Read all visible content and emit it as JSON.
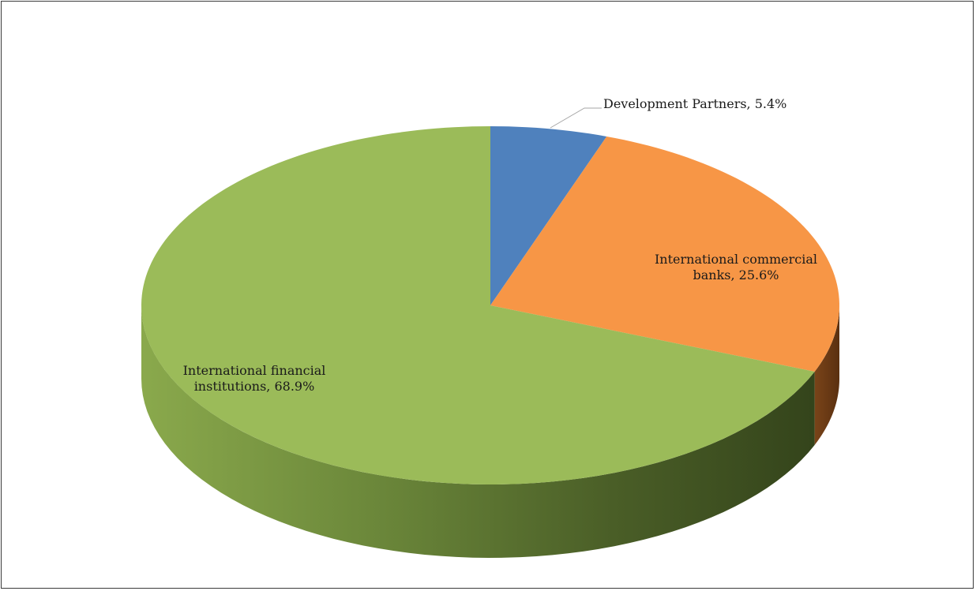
{
  "chart_data": {
    "type": "pie",
    "style": "3d",
    "title": "",
    "slices": [
      {
        "label_lines": [
          "Development Partners, 5.4%"
        ],
        "name": "Development Partners",
        "value": 5.4,
        "color": "#4f81bd",
        "dark": "#2b4a70"
      },
      {
        "label_lines": [
          "International commercial",
          "banks, 25.6%"
        ],
        "name": "International commercial banks",
        "value": 25.6,
        "color": "#f79646",
        "dark": "#6b3a14"
      },
      {
        "label_lines": [
          "International financial",
          "institutions, 68.9%"
        ],
        "name": "International financial institutions",
        "value": 68.9,
        "color": "#9bbb59",
        "dark": "#3a4a1f"
      }
    ],
    "legend": "none",
    "data_labels": "category, percentage"
  }
}
